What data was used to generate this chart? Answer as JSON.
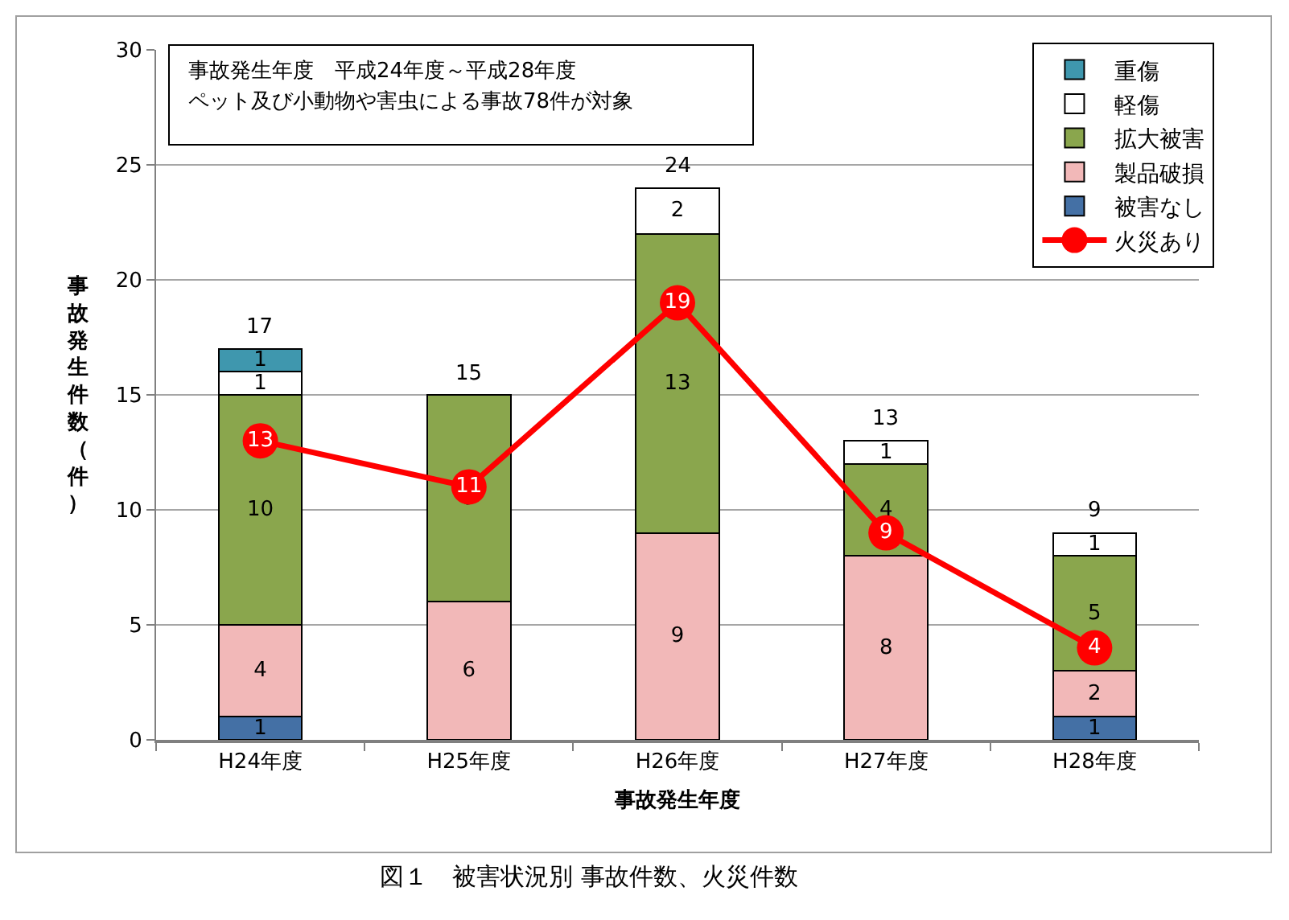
{
  "chart_data": {
    "type": "bar",
    "stacked": true,
    "categories": [
      "H24年度",
      "H25年度",
      "H26年度",
      "H27年度",
      "H28年度"
    ],
    "xlabel": "事故発生年度",
    "ylabel": "事故発生件数（件）",
    "ylim": [
      0,
      30
    ],
    "yticks": [
      0,
      5,
      10,
      15,
      20,
      25,
      30
    ],
    "grid": "y",
    "legend": "top right",
    "data_labels": true,
    "marker": "circle",
    "totals": [
      "17",
      "15",
      "24",
      "13",
      "9"
    ],
    "annotations": [
      "事故発生年度　平成24年度～平成28年度",
      "ペット及び小動物や害虫による事故78件が対象",
      "図１　被害状況別 事故件数、火災件数"
    ],
    "series": [
      {
        "name": "被害なし",
        "color": "#4470a5",
        "values": [
          1,
          null,
          null,
          null,
          1
        ]
      },
      {
        "name": "製品破損",
        "color": "#f2b8b8",
        "values": [
          4,
          6,
          9,
          8,
          2
        ]
      },
      {
        "name": "拡大被害",
        "color": "#8aa64d",
        "values": [
          10,
          9,
          13,
          4,
          5
        ]
      },
      {
        "name": "軽傷",
        "color": "#ffffff",
        "values": [
          1,
          null,
          2,
          1,
          1
        ]
      },
      {
        "name": "重傷",
        "color": "#3f97ae",
        "values": [
          1,
          null,
          null,
          null,
          null
        ]
      },
      {
        "name": "火災あり",
        "type": "line",
        "color": "#ff0000",
        "values": [
          13,
          11,
          19,
          9,
          4
        ]
      }
    ]
  }
}
